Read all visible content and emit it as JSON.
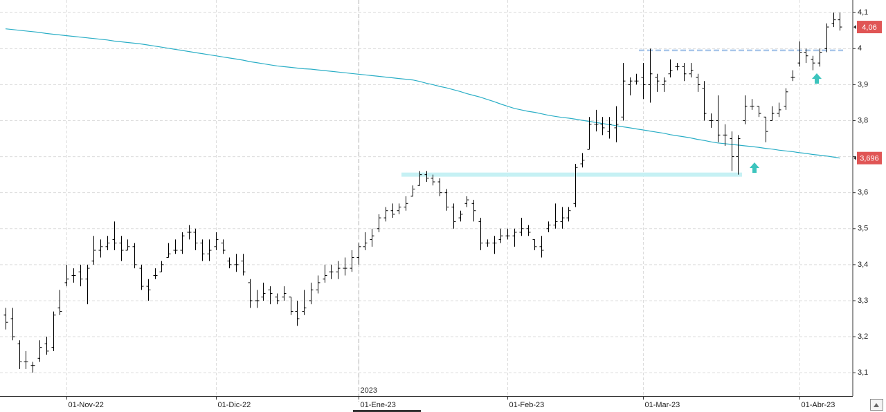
{
  "chart_data": {
    "type": "ohlc",
    "categories": [
      null,
      null,
      null,
      null,
      null,
      null,
      null,
      null,
      null,
      "01-Nov-22",
      null,
      null,
      null,
      null,
      null,
      null,
      null,
      null,
      null,
      null,
      null,
      null,
      null,
      null,
      null,
      null,
      null,
      null,
      null,
      null,
      null,
      "01-Dic-22",
      null,
      null,
      null,
      null,
      null,
      null,
      null,
      null,
      null,
      null,
      null,
      null,
      null,
      null,
      null,
      null,
      null,
      null,
      null,
      null,
      "01-Ene-23",
      null,
      null,
      null,
      null,
      null,
      null,
      null,
      null,
      null,
      null,
      null,
      null,
      null,
      null,
      null,
      null,
      null,
      null,
      null,
      null,
      null,
      "01-Feb-23",
      null,
      null,
      null,
      null,
      null,
      null,
      null,
      null,
      null,
      null,
      null,
      null,
      null,
      null,
      null,
      null,
      null,
      null,
      null,
      "01-Mar-23",
      null,
      null,
      null,
      null,
      null,
      null,
      null,
      null,
      null,
      null,
      null,
      null,
      null,
      null,
      null,
      null,
      null,
      null,
      null,
      null,
      null,
      null,
      "01-Abr-23",
      null,
      null,
      null,
      null,
      null,
      null
    ],
    "year_marker": "2023",
    "ohlc": {
      "color": "#000000",
      "open": [
        3.26,
        3.25,
        3.18,
        3.13,
        3.12,
        3.14,
        3.18,
        3.17,
        3.28,
        3.35,
        3.37,
        3.38,
        3.36,
        3.41,
        3.44,
        3.45,
        3.47,
        3.46,
        3.44,
        3.45,
        3.39,
        3.34,
        3.37,
        3.38,
        3.42,
        3.44,
        3.44,
        3.49,
        3.49,
        3.46,
        3.43,
        3.45,
        3.46,
        3.41,
        3.4,
        3.41,
        3.35,
        3.3,
        3.31,
        3.33,
        3.31,
        3.31,
        3.31,
        3.27,
        3.27,
        3.3,
        3.33,
        3.36,
        3.38,
        3.38,
        3.39,
        3.39,
        3.42,
        3.45,
        3.47,
        3.5,
        3.53,
        3.55,
        3.55,
        3.56,
        3.59,
        3.62,
        3.65,
        3.64,
        3.63,
        3.6,
        3.56,
        3.53,
        3.57,
        3.57,
        3.52,
        3.46,
        3.46,
        3.47,
        3.48,
        3.48,
        3.49,
        3.5,
        3.47,
        3.45,
        3.5,
        3.51,
        3.52,
        3.53,
        3.57,
        3.68,
        3.72,
        3.79,
        3.79,
        3.77,
        3.78,
        3.81,
        3.9,
        3.91,
        3.92,
        3.9,
        3.92,
        3.9,
        3.93,
        3.95,
        3.95,
        3.93,
        3.92,
        3.89,
        3.8,
        3.8,
        3.76,
        3.75,
        3.7,
        3.8,
        3.84,
        3.84,
        3.81,
        3.8,
        3.82,
        3.84,
        3.92,
        3.96,
        3.99,
        3.97,
        3.96,
        4.0,
        4.07,
        4.08
      ],
      "high": [
        3.28,
        3.28,
        3.19,
        3.16,
        3.13,
        3.19,
        3.2,
        3.27,
        3.33,
        3.4,
        3.39,
        3.4,
        3.4,
        3.48,
        3.47,
        3.48,
        3.52,
        3.48,
        3.47,
        3.46,
        3.4,
        3.36,
        3.39,
        3.41,
        3.46,
        3.47,
        3.49,
        3.51,
        3.5,
        3.47,
        3.47,
        3.49,
        3.47,
        3.42,
        3.43,
        3.43,
        3.36,
        3.33,
        3.35,
        3.34,
        3.32,
        3.34,
        3.31,
        3.3,
        3.33,
        3.35,
        3.37,
        3.4,
        3.4,
        3.41,
        3.42,
        3.44,
        3.46,
        3.49,
        3.5,
        3.54,
        3.56,
        3.57,
        3.57,
        3.59,
        3.62,
        3.66,
        3.66,
        3.65,
        3.64,
        3.61,
        3.57,
        3.55,
        3.59,
        3.58,
        3.53,
        3.47,
        3.48,
        3.5,
        3.5,
        3.5,
        3.53,
        3.51,
        3.47,
        3.48,
        3.52,
        3.57,
        3.56,
        3.56,
        3.68,
        3.71,
        3.81,
        3.83,
        3.81,
        3.81,
        3.84,
        3.96,
        3.92,
        3.93,
        3.96,
        4.0,
        3.93,
        3.92,
        3.97,
        3.96,
        3.96,
        3.96,
        3.93,
        3.91,
        3.82,
        3.87,
        3.79,
        3.77,
        3.76,
        3.87,
        3.86,
        3.84,
        3.81,
        3.84,
        3.85,
        3.89,
        3.94,
        4.02,
        4.0,
        3.98,
        4.0,
        4.07,
        4.1,
        4.1
      ],
      "low": [
        3.22,
        3.19,
        3.11,
        3.11,
        3.1,
        3.13,
        3.15,
        3.16,
        3.26,
        3.34,
        3.35,
        3.34,
        3.29,
        3.4,
        3.42,
        3.44,
        3.44,
        3.41,
        3.44,
        3.39,
        3.33,
        3.3,
        3.36,
        3.38,
        3.42,
        3.43,
        3.43,
        3.47,
        3.44,
        3.41,
        3.41,
        3.44,
        3.43,
        3.39,
        3.38,
        3.37,
        3.28,
        3.28,
        3.3,
        3.29,
        3.29,
        3.3,
        3.26,
        3.23,
        3.26,
        3.29,
        3.32,
        3.35,
        3.36,
        3.36,
        3.37,
        3.38,
        3.4,
        3.44,
        3.45,
        3.49,
        3.52,
        3.53,
        3.54,
        3.55,
        3.59,
        3.62,
        3.63,
        3.62,
        3.59,
        3.55,
        3.5,
        3.52,
        3.56,
        3.52,
        3.44,
        3.45,
        3.43,
        3.46,
        3.47,
        3.45,
        3.48,
        3.48,
        3.44,
        3.42,
        3.49,
        3.5,
        3.5,
        3.52,
        3.56,
        3.67,
        3.72,
        3.77,
        3.76,
        3.75,
        3.74,
        3.8,
        3.87,
        3.9,
        3.86,
        3.85,
        3.88,
        3.88,
        3.92,
        3.94,
        3.91,
        3.92,
        3.88,
        3.8,
        3.78,
        3.74,
        3.73,
        3.66,
        3.65,
        3.79,
        3.83,
        3.81,
        3.74,
        3.8,
        3.81,
        3.83,
        3.91,
        3.95,
        3.96,
        3.94,
        3.95,
        3.99,
        4.06,
        4.05
      ],
      "close": [
        3.24,
        3.2,
        3.13,
        3.13,
        3.12,
        3.17,
        3.16,
        3.26,
        3.27,
        3.36,
        3.37,
        3.36,
        3.39,
        3.44,
        3.45,
        3.46,
        3.46,
        3.44,
        3.45,
        3.4,
        3.34,
        3.33,
        3.37,
        3.4,
        3.43,
        3.44,
        3.48,
        3.49,
        3.46,
        3.43,
        3.44,
        3.47,
        3.44,
        3.4,
        3.4,
        3.38,
        3.3,
        3.3,
        3.32,
        3.32,
        3.3,
        3.32,
        3.27,
        3.25,
        3.28,
        3.33,
        3.35,
        3.37,
        3.38,
        3.39,
        3.39,
        3.42,
        3.45,
        3.46,
        3.48,
        3.53,
        3.55,
        3.54,
        3.56,
        3.57,
        3.61,
        3.65,
        3.64,
        3.63,
        3.6,
        3.56,
        3.52,
        3.54,
        3.58,
        3.55,
        3.46,
        3.46,
        3.46,
        3.48,
        3.48,
        3.49,
        3.5,
        3.49,
        3.45,
        3.44,
        3.51,
        3.52,
        3.53,
        3.55,
        3.67,
        3.69,
        3.79,
        3.79,
        3.78,
        3.79,
        3.79,
        3.91,
        3.91,
        3.91,
        3.9,
        3.93,
        3.91,
        3.91,
        3.94,
        3.95,
        3.93,
        3.94,
        3.9,
        3.82,
        3.8,
        3.76,
        3.76,
        3.7,
        3.75,
        3.84,
        3.84,
        3.82,
        3.77,
        3.82,
        3.83,
        3.88,
        3.92,
        3.99,
        3.98,
        3.96,
        3.99,
        4.06,
        4.08,
        4.06
      ],
      "current": {
        "value": 4.06,
        "label": "4,06"
      }
    },
    "moving_average": {
      "color": "#2aaec6",
      "values": [
        4.055,
        4.053,
        4.051,
        4.049,
        4.047,
        4.045,
        4.042,
        4.04,
        4.038,
        4.036,
        4.034,
        4.032,
        4.03,
        4.028,
        4.026,
        4.024,
        4.021,
        4.019,
        4.017,
        4.015,
        4.013,
        4.01,
        4.007,
        4.004,
        4.001,
        3.998,
        3.995,
        3.992,
        3.989,
        3.986,
        3.983,
        3.98,
        3.977,
        3.974,
        3.971,
        3.968,
        3.964,
        3.961,
        3.958,
        3.955,
        3.952,
        3.95,
        3.948,
        3.946,
        3.944,
        3.943,
        3.941,
        3.939,
        3.937,
        3.935,
        3.933,
        3.931,
        3.929,
        3.927,
        3.925,
        3.923,
        3.921,
        3.919,
        3.917,
        3.915,
        3.913,
        3.909,
        3.904,
        3.9,
        3.895,
        3.891,
        3.886,
        3.881,
        3.875,
        3.87,
        3.865,
        3.859,
        3.853,
        3.846,
        3.84,
        3.834,
        3.83,
        3.826,
        3.823,
        3.819,
        3.815,
        3.812,
        3.809,
        3.807,
        3.804,
        3.801,
        3.798,
        3.795,
        3.792,
        3.789,
        3.786,
        3.783,
        3.78,
        3.777,
        3.774,
        3.771,
        3.768,
        3.765,
        3.761,
        3.758,
        3.755,
        3.752,
        3.748,
        3.745,
        3.741,
        3.738,
        3.736,
        3.734,
        3.732,
        3.73,
        3.728,
        3.726,
        3.723,
        3.721,
        3.718,
        3.716,
        3.714,
        3.711,
        3.709,
        3.706,
        3.704,
        3.702,
        3.699,
        3.696
      ],
      "current": {
        "value": 3.696,
        "label": "3,696"
      }
    },
    "levels": [
      {
        "value": 3.995,
        "color": "#a9c6ea",
        "dashed": true
      },
      {
        "value": 3.65,
        "color": "#c6f1f4",
        "dashed": false
      }
    ],
    "ylim": [
      3.035,
      4.135
    ],
    "yticks": [
      {
        "value": 3.1,
        "label": "3,1"
      },
      {
        "value": 3.2,
        "label": "3,2"
      },
      {
        "value": 3.3,
        "label": "3,3"
      },
      {
        "value": 3.4,
        "label": "3,4"
      },
      {
        "value": 3.5,
        "label": "3,5"
      },
      {
        "value": 3.6,
        "label": "3,6"
      },
      {
        "value": 3.7,
        "label": "3,7"
      },
      {
        "value": 3.8,
        "label": "3,8"
      },
      {
        "value": 3.9,
        "label": "3,9"
      },
      4,
      {
        "value": 4.1,
        "label": "4,1"
      }
    ],
    "grid": true
  }
}
